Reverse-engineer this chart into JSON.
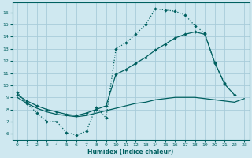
{
  "xlabel": "Humidex (Indice chaleur)",
  "bg_color": "#cfe8f0",
  "grid_color": "#a8ccda",
  "line_color": "#006060",
  "xlim": [
    -0.5,
    23.5
  ],
  "ylim": [
    5.5,
    16.8
  ],
  "yticks": [
    6,
    7,
    8,
    9,
    10,
    11,
    12,
    13,
    14,
    15,
    16
  ],
  "xticks": [
    0,
    1,
    2,
    3,
    4,
    5,
    6,
    7,
    8,
    9,
    10,
    11,
    12,
    13,
    14,
    15,
    16,
    17,
    18,
    19,
    20,
    21,
    22,
    23
  ],
  "line1_x": [
    0,
    1,
    2,
    3,
    4,
    5,
    6,
    7,
    8,
    9,
    10,
    11,
    12,
    13,
    14,
    15,
    16,
    17,
    18,
    19,
    20,
    21
  ],
  "line1_y": [
    9.4,
    8.5,
    7.7,
    7.0,
    7.0,
    6.1,
    5.9,
    6.2,
    8.2,
    7.3,
    13.0,
    13.5,
    14.2,
    15.0,
    16.3,
    16.2,
    16.1,
    15.8,
    14.9,
    14.3,
    11.8,
    10.2
  ],
  "line2_x": [
    0,
    1,
    2,
    3,
    4,
    5,
    6,
    7,
    8,
    9,
    10,
    11,
    12,
    13,
    14,
    15,
    16,
    17,
    18,
    19,
    20,
    21,
    22,
    23
  ],
  "line2_y": [
    9.2,
    8.7,
    8.3,
    8.0,
    7.8,
    7.6,
    7.5,
    7.7,
    8.0,
    8.3,
    10.9,
    11.3,
    11.8,
    12.3,
    12.9,
    13.4,
    13.9,
    14.2,
    14.4,
    14.2,
    11.9,
    10.1,
    9.2,
    null
  ],
  "line3_x": [
    0,
    1,
    2,
    3,
    4,
    5,
    6,
    7,
    8,
    9,
    10,
    11,
    12,
    13,
    14,
    15,
    16,
    17,
    18,
    19,
    20,
    21,
    22,
    23
  ],
  "line3_y": [
    9.0,
    8.5,
    8.1,
    7.8,
    7.6,
    7.5,
    7.4,
    7.5,
    7.7,
    7.9,
    8.1,
    8.3,
    8.5,
    8.6,
    8.8,
    8.9,
    9.0,
    9.0,
    9.0,
    8.9,
    8.8,
    8.7,
    8.6,
    8.9
  ]
}
